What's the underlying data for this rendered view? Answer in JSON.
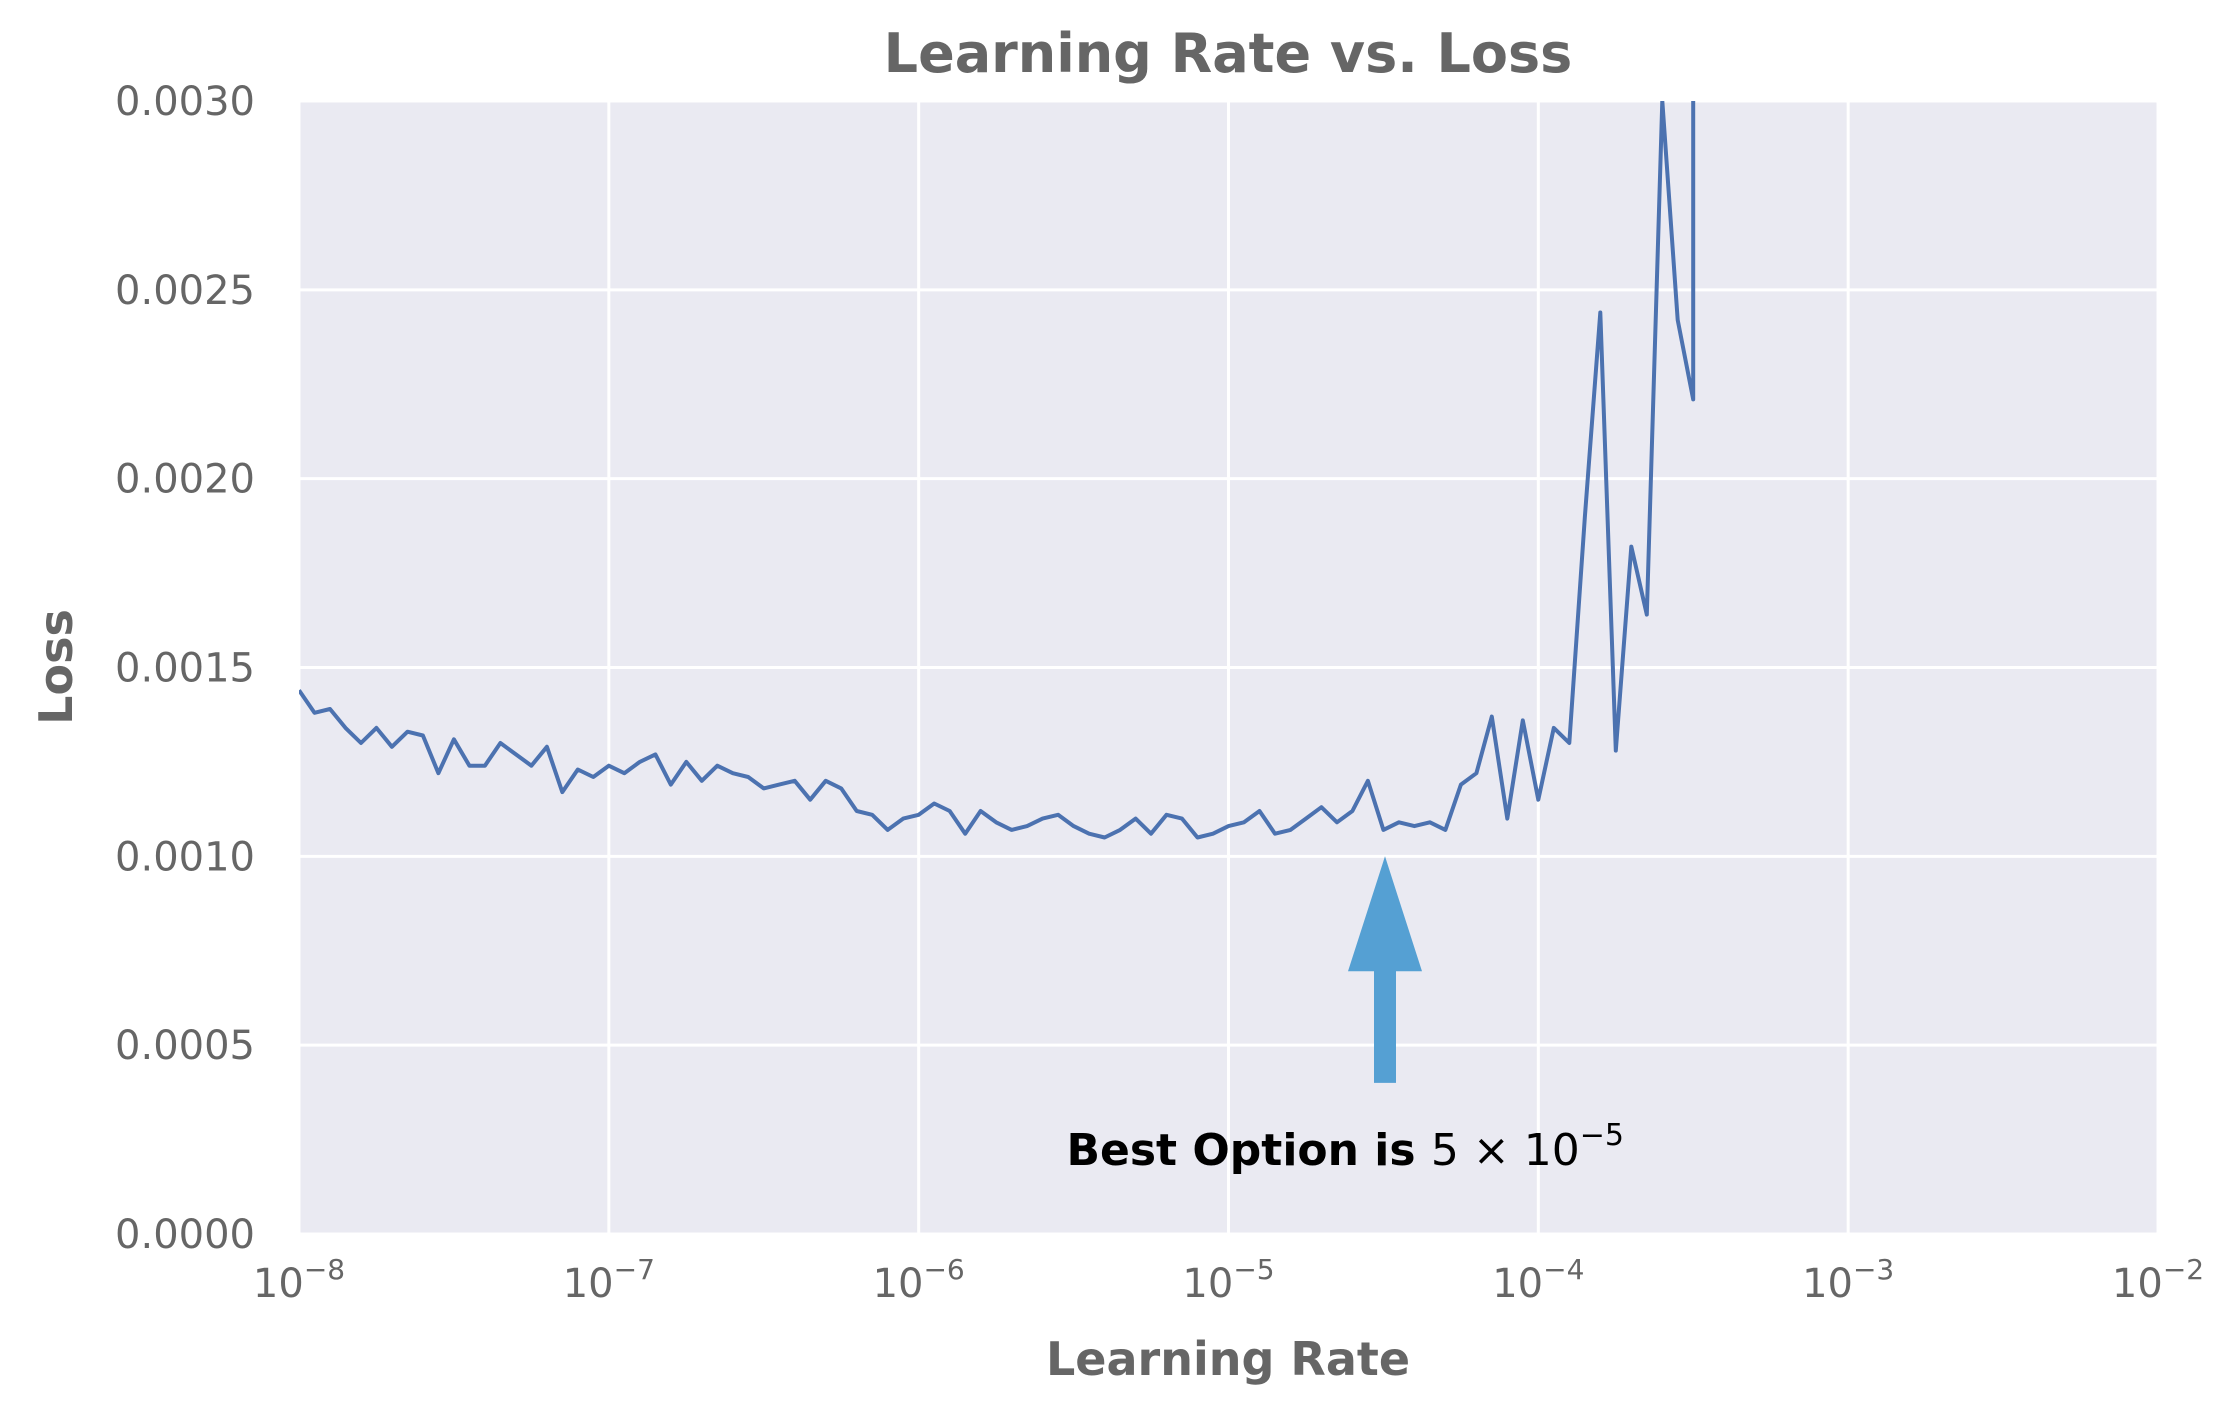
{
  "chart_data": {
    "type": "line",
    "title": "Learning Rate vs. Loss",
    "xlabel": "Learning Rate",
    "ylabel": "Loss",
    "xscale": "log",
    "xlim": [
      1e-08,
      0.01
    ],
    "ylim": [
      0,
      0.003
    ],
    "grid": true,
    "x_ticks": [
      {
        "base": "10",
        "exp": "−8"
      },
      {
        "base": "10",
        "exp": "−7"
      },
      {
        "base": "10",
        "exp": "−6"
      },
      {
        "base": "10",
        "exp": "−5"
      },
      {
        "base": "10",
        "exp": "−4"
      },
      {
        "base": "10",
        "exp": "−3"
      },
      {
        "base": "10",
        "exp": "−2"
      }
    ],
    "x_tick_values": [
      1e-08,
      1e-07,
      1e-06,
      1e-05,
      0.0001,
      0.001,
      0.01
    ],
    "y_ticks": [
      "0.0000",
      "0.0005",
      "0.0010",
      "0.0015",
      "0.0020",
      "0.0025",
      "0.0030"
    ],
    "y_tick_values": [
      0,
      0.0005,
      0.001,
      0.0015,
      0.002,
      0.0025,
      0.003
    ],
    "series": [
      {
        "color": "#4c72b0",
        "x": [
          1e-08,
          1.122e-08,
          1.259e-08,
          1.413e-08,
          1.585e-08,
          1.778e-08,
          1.995e-08,
          2.239e-08,
          2.512e-08,
          2.818e-08,
          3.162e-08,
          3.548e-08,
          3.981e-08,
          4.467e-08,
          5.012e-08,
          5.623e-08,
          6.31e-08,
          7.079e-08,
          7.943e-08,
          8.913e-08,
          1e-07,
          1.122e-07,
          1.259e-07,
          1.413e-07,
          1.585e-07,
          1.778e-07,
          1.995e-07,
          2.239e-07,
          2.512e-07,
          2.818e-07,
          3.162e-07,
          3.548e-07,
          3.981e-07,
          4.467e-07,
          5.012e-07,
          5.623e-07,
          6.31e-07,
          7.079e-07,
          7.943e-07,
          8.913e-07,
          1e-06,
          1.122e-06,
          1.259e-06,
          1.413e-06,
          1.585e-06,
          1.778e-06,
          1.995e-06,
          2.239e-06,
          2.512e-06,
          2.818e-06,
          3.162e-06,
          3.548e-06,
          3.981e-06,
          4.467e-06,
          5.012e-06,
          5.623e-06,
          6.31e-06,
          7.079e-06,
          7.943e-06,
          8.913e-06,
          1e-05,
          1.122e-05,
          1.259e-05,
          1.413e-05,
          1.585e-05,
          1.778e-05,
          1.995e-05,
          2.239e-05,
          2.512e-05,
          2.818e-05,
          3.162e-05,
          3.548e-05,
          3.981e-05,
          4.467e-05,
          5.012e-05,
          5.623e-05,
          6.31e-05,
          7.079e-05,
          7.943e-05,
          8.913e-05,
          0.0001,
          0.0001122,
          0.0001259,
          0.0001413,
          0.0001585,
          0.0001778,
          0.0001995,
          0.0002239,
          0.0002512,
          0.0002818,
          0.0003162,
          0.0003162
        ],
        "y": [
          0.00144,
          0.00138,
          0.00139,
          0.00134,
          0.0013,
          0.00134,
          0.00129,
          0.00133,
          0.00132,
          0.00122,
          0.00131,
          0.00124,
          0.00124,
          0.0013,
          0.00127,
          0.00124,
          0.00129,
          0.00117,
          0.00123,
          0.00121,
          0.00124,
          0.00122,
          0.00125,
          0.00127,
          0.00119,
          0.00125,
          0.0012,
          0.00124,
          0.00122,
          0.00121,
          0.00118,
          0.00119,
          0.0012,
          0.00115,
          0.0012,
          0.00118,
          0.00112,
          0.00111,
          0.00107,
          0.0011,
          0.00111,
          0.00114,
          0.00112,
          0.00106,
          0.00112,
          0.00109,
          0.00107,
          0.00108,
          0.0011,
          0.00111,
          0.00108,
          0.00106,
          0.00105,
          0.00107,
          0.0011,
          0.00106,
          0.00111,
          0.0011,
          0.00105,
          0.00106,
          0.00108,
          0.00109,
          0.00112,
          0.00106,
          0.00107,
          0.0011,
          0.00113,
          0.00109,
          0.00112,
          0.0012,
          0.00107,
          0.00109,
          0.00108,
          0.00109,
          0.00107,
          0.00119,
          0.00122,
          0.00137,
          0.0011,
          0.00136,
          0.00115,
          0.00134,
          0.0013,
          0.0019,
          0.00244,
          0.00128,
          0.00182,
          0.00164,
          0.003,
          0.00242,
          0.00221,
          0.003
        ]
      }
    ],
    "annotation": {
      "text_bold": "Best Option is ",
      "text_math_base": "5 × 10",
      "text_math_exp": "−5",
      "arrow_target_x": 3.2e-05,
      "arrow_target_y": 0.001,
      "arrow_tail_y": 0.0004,
      "text_x": 3e-06,
      "text_y": 0.00022,
      "color": "#55a0d3"
    }
  }
}
